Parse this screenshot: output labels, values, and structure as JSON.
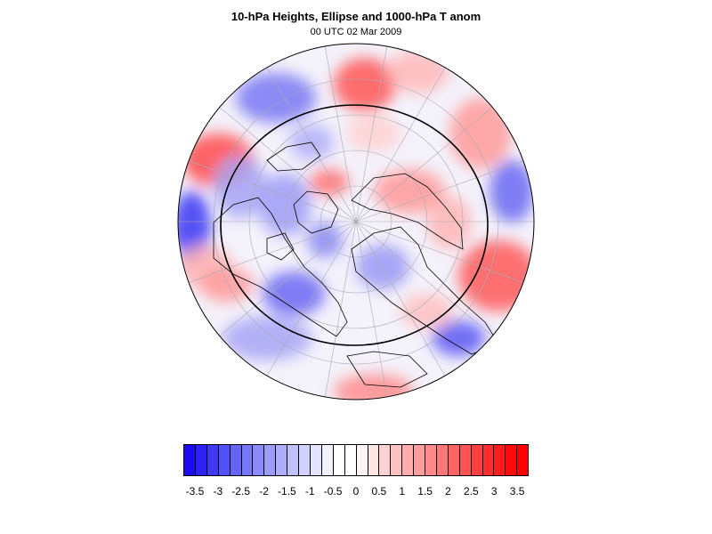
{
  "title": "10-hPa Heights, Ellipse and 1000-hPa T anom",
  "subtitle": "00 UTC 02 Mar 2009",
  "map": {
    "projection": "polar stereographic (Northern Hemisphere)",
    "field": "1000-hPa temperature anomaly",
    "overlays": [
      "10-hPa height ellipse contour",
      "coastlines",
      "lat/lon grid"
    ],
    "colors": {
      "negative_max": "#1a12f0",
      "neutral": "#ffffff",
      "positive_max": "#ff1a1a",
      "grid": "#b0b0b0",
      "coast": "#000000"
    }
  },
  "colorbar": {
    "levels": [
      -3.75,
      -3.5,
      -3.25,
      -3,
      -2.75,
      -2.5,
      -2.25,
      -2,
      -1.75,
      -1.5,
      -1.25,
      -1,
      -0.75,
      -0.5,
      -0.25,
      0,
      0.25,
      0.5,
      0.75,
      1,
      1.25,
      1.5,
      1.75,
      2,
      2.25,
      2.5,
      2.75,
      3,
      3.25,
      3.5,
      3.75
    ],
    "tick_values": [
      -3.5,
      -3,
      -2.5,
      -2,
      -1.5,
      -1,
      -0.5,
      0,
      0.5,
      1,
      1.5,
      2,
      2.5,
      3,
      3.5
    ],
    "tick_labels": [
      "-3.5",
      "-3",
      "-2.5",
      "-2",
      "-1.5",
      "-1",
      "-0.5",
      "0",
      "0.5",
      "1",
      "1.5",
      "2",
      "2.5",
      "3",
      "3.5"
    ],
    "swatch_colors": [
      "#1b0af4",
      "#2d22f5",
      "#3f38f6",
      "#5250f7",
      "#6464f8",
      "#7676f9",
      "#8a8afa",
      "#9c9cfb",
      "#aeaefc",
      "#c0c0fd",
      "#d2d2fe",
      "#e4e4fe",
      "#f2f2ff",
      "#ffffff",
      "#ffffff",
      "#fff4f4",
      "#ffe4e4",
      "#ffd2d2",
      "#ffc0c0",
      "#ffaeae",
      "#ff9c9c",
      "#ff8a8a",
      "#ff7676",
      "#ff6464",
      "#ff5252",
      "#ff4040",
      "#ff2e2e",
      "#ff1c1c",
      "#ff0a0a",
      "#ff0000"
    ]
  }
}
